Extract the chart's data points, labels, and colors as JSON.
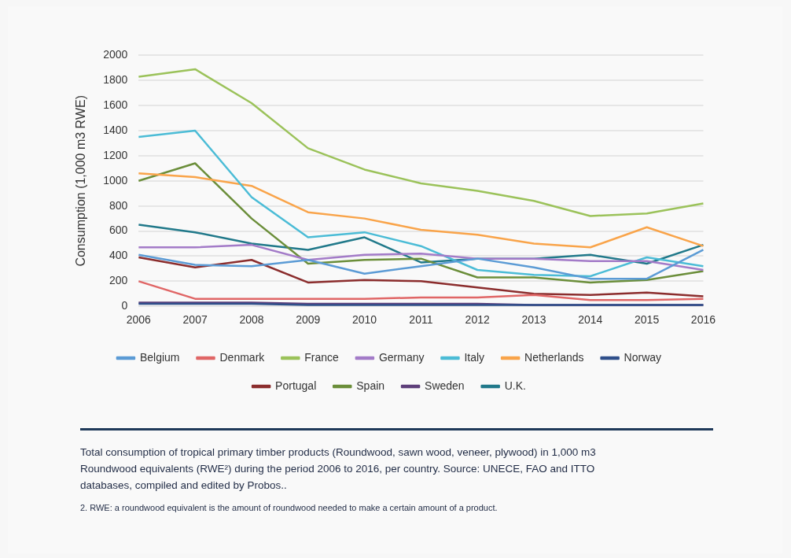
{
  "chart_data": {
    "type": "line",
    "ylabel": "Consumption (1,000 m3 RWE)",
    "categories": [
      "2006",
      "2007",
      "2008",
      "2009",
      "2010",
      "2011",
      "2012",
      "2013",
      "2014",
      "2015",
      "2016"
    ],
    "series": [
      {
        "name": "Belgium",
        "color": "#5b9bd5",
        "values": [
          410,
          330,
          320,
          370,
          260,
          320,
          380,
          310,
          220,
          220,
          450
        ]
      },
      {
        "name": "Denmark",
        "color": "#e06666",
        "values": [
          200,
          60,
          60,
          60,
          60,
          70,
          70,
          90,
          50,
          50,
          60
        ]
      },
      {
        "name": "France",
        "color": "#9bc25a",
        "values": [
          1830,
          1890,
          1620,
          1260,
          1090,
          980,
          920,
          840,
          720,
          740,
          820
        ]
      },
      {
        "name": "Germany",
        "color": "#a37bc8",
        "values": [
          470,
          470,
          490,
          370,
          410,
          420,
          380,
          380,
          360,
          360,
          290
        ]
      },
      {
        "name": "Italy",
        "color": "#4bbcd6",
        "values": [
          1350,
          1400,
          870,
          550,
          590,
          480,
          290,
          250,
          240,
          390,
          320
        ]
      },
      {
        "name": "Netherlands",
        "color": "#f9a44a",
        "values": [
          1060,
          1030,
          960,
          750,
          700,
          610,
          570,
          500,
          470,
          630,
          480
        ]
      },
      {
        "name": "Norway",
        "color": "#2f4f8a",
        "values": [
          20,
          20,
          20,
          10,
          10,
          10,
          10,
          10,
          10,
          10,
          10
        ]
      },
      {
        "name": "Portugal",
        "color": "#8b2d2d",
        "values": [
          390,
          310,
          370,
          190,
          210,
          200,
          150,
          100,
          90,
          110,
          80
        ]
      },
      {
        "name": "Spain",
        "color": "#6b8e3a",
        "values": [
          1000,
          1140,
          700,
          340,
          370,
          380,
          230,
          230,
          190,
          210,
          280
        ]
      },
      {
        "name": "Sweden",
        "color": "#5e3f7a",
        "values": [
          30,
          30,
          30,
          20,
          20,
          20,
          20,
          10,
          10,
          10,
          10
        ]
      },
      {
        "name": "U.K.",
        "color": "#21798a",
        "values": [
          650,
          590,
          500,
          450,
          550,
          350,
          380,
          380,
          410,
          340,
          490
        ]
      }
    ],
    "ylim": [
      0,
      2000
    ],
    "yticks": [
      0,
      200,
      400,
      600,
      800,
      1000,
      1200,
      1400,
      1600,
      1800,
      2000
    ],
    "grid": "y",
    "legend": "bottom",
    "marker": "none",
    "line_style": "solid",
    "annotations": [
      "Total consumption of tropical primary timber products (Roundwood, sawn wood, veneer, plywood) in 1,000 m3 Roundwood equivalents (RWE²) during the period 2006 to 2016, per country. Source: UNECE, FAO and ITTO databases, compiled and edited by Probos..",
      "2. RWE: a roundwood equivalent is the amount of roundwood needed to make a certain amount of a product."
    ]
  }
}
